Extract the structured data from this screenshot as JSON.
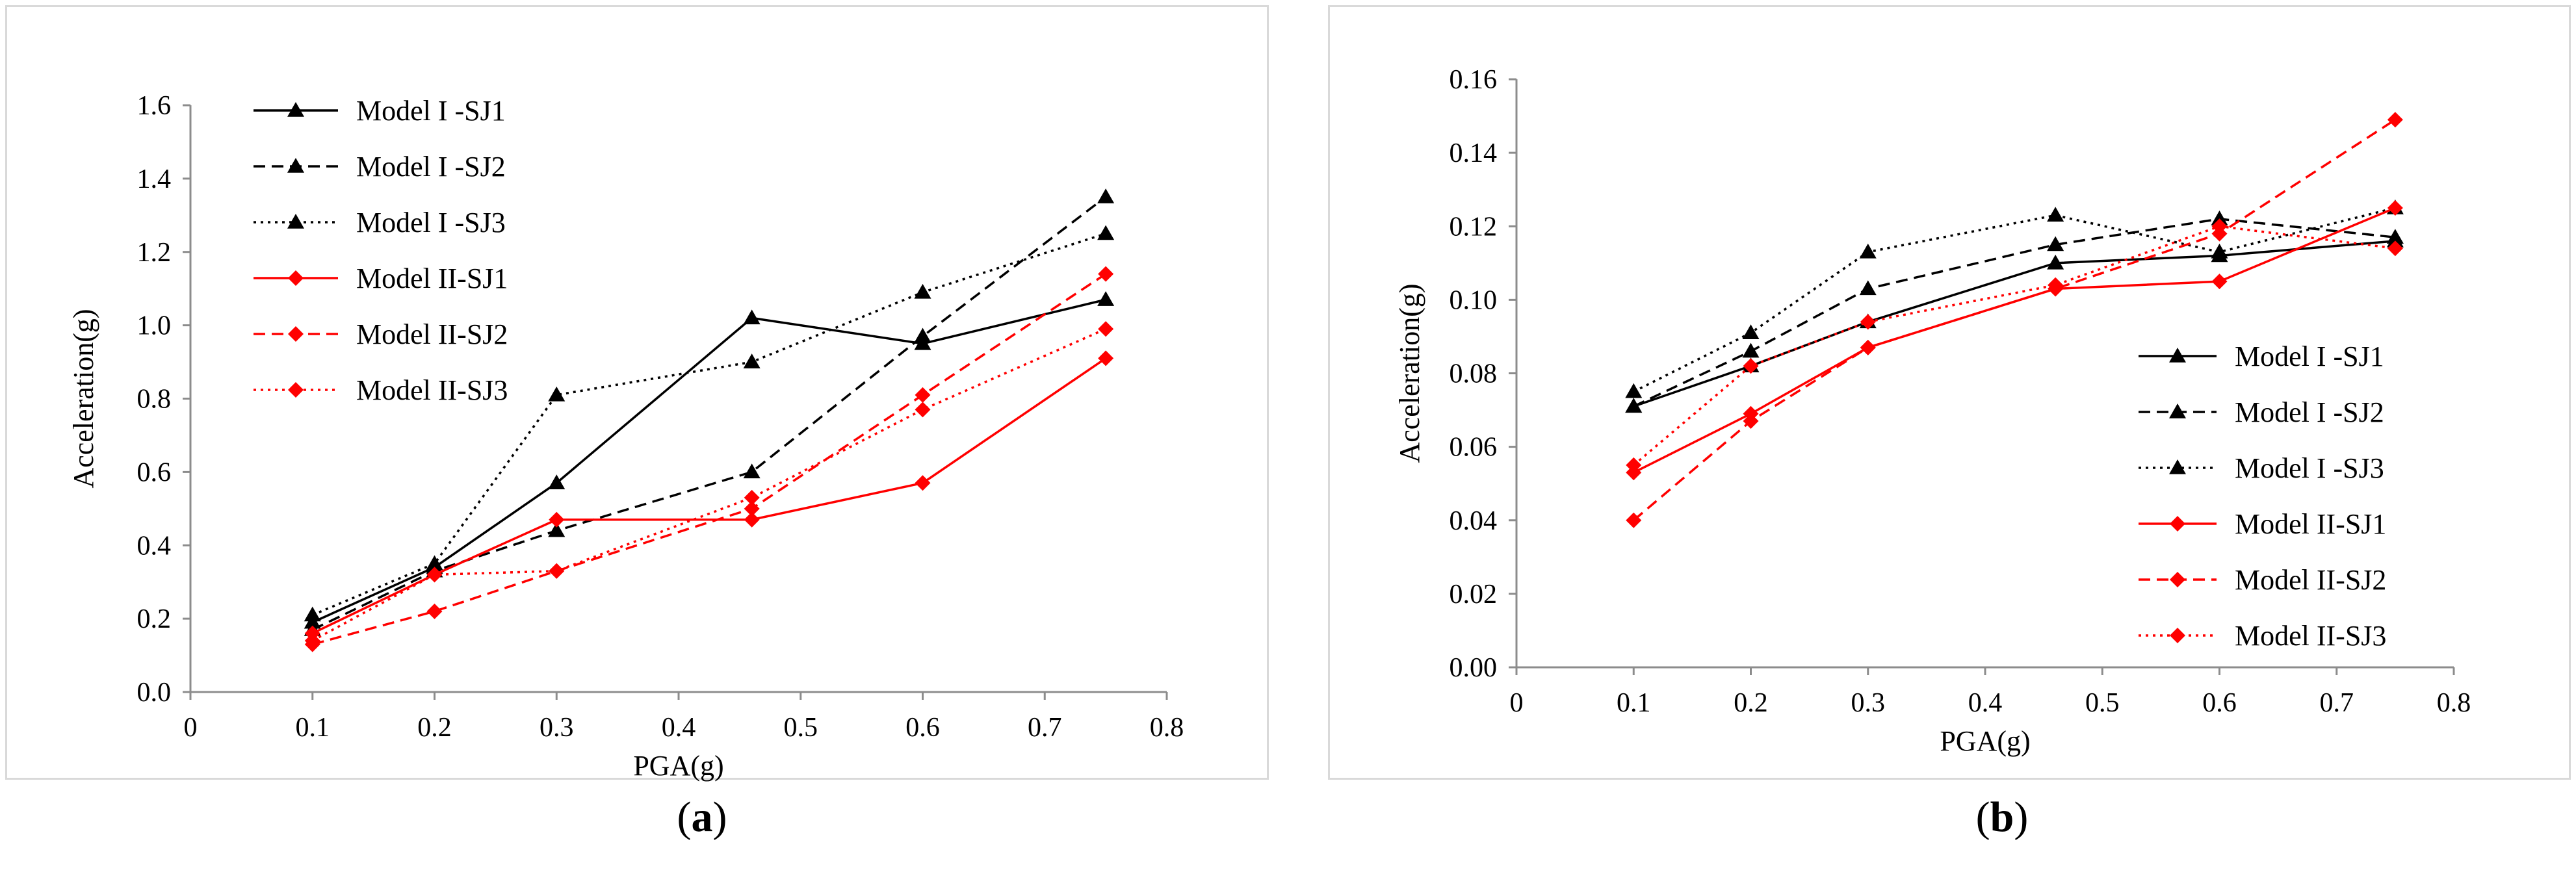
{
  "chart_data": [
    {
      "type": "line",
      "panel_label": "a",
      "xlabel": "PGA(g)",
      "ylabel": "Acceleration(g)",
      "xlim": [
        0,
        0.8
      ],
      "ylim": [
        0,
        1.6
      ],
      "xticks": [
        "0",
        "0.1",
        "0.2",
        "0.3",
        "0.4",
        "0.5",
        "0.6",
        "0.7",
        "0.8"
      ],
      "yticks": [
        "0.0",
        "0.2",
        "0.4",
        "0.6",
        "0.8",
        "1.0",
        "1.2",
        "1.4",
        "1.6"
      ],
      "legend_position": "top-left",
      "x": [
        0.1,
        0.2,
        0.3,
        0.46,
        0.6,
        0.75
      ],
      "series": [
        {
          "name": "Model I -SJ1",
          "values": [
            0.19,
            0.34,
            0.57,
            1.02,
            0.95,
            1.07
          ],
          "color": "#000000",
          "dash": "solid",
          "marker": "triangle"
        },
        {
          "name": "Model I -SJ2",
          "values": [
            0.17,
            0.33,
            0.44,
            0.6,
            0.97,
            1.35
          ],
          "color": "#000000",
          "dash": "dashed",
          "marker": "triangle"
        },
        {
          "name": "Model I -SJ3",
          "values": [
            0.21,
            0.35,
            0.81,
            0.9,
            1.09,
            1.25
          ],
          "color": "#000000",
          "dash": "dotted",
          "marker": "triangle"
        },
        {
          "name": "Model II-SJ1",
          "values": [
            0.16,
            0.32,
            0.47,
            0.47,
            0.57,
            0.91
          ],
          "color": "#ff0000",
          "dash": "solid",
          "marker": "diamond"
        },
        {
          "name": "Model II-SJ2",
          "values": [
            0.13,
            0.22,
            0.33,
            0.5,
            0.81,
            1.14
          ],
          "color": "#ff0000",
          "dash": "dashed",
          "marker": "diamond"
        },
        {
          "name": "Model II-SJ3",
          "values": [
            0.14,
            0.32,
            0.33,
            0.53,
            0.77,
            0.99
          ],
          "color": "#ff0000",
          "dash": "dotted",
          "marker": "diamond"
        }
      ]
    },
    {
      "type": "line",
      "panel_label": "b",
      "xlabel": "PGA(g)",
      "ylabel": "Acceleration(g)",
      "xlim": [
        0,
        0.8
      ],
      "ylim": [
        0,
        0.16
      ],
      "xticks": [
        "0",
        "0.1",
        "0.2",
        "0.3",
        "0.4",
        "0.5",
        "0.6",
        "0.7",
        "0.8"
      ],
      "yticks": [
        "0.00",
        "0.02",
        "0.04",
        "0.06",
        "0.08",
        "0.10",
        "0.12",
        "0.14",
        "0.16"
      ],
      "legend_position": "bottom-right",
      "x": [
        0.1,
        0.2,
        0.3,
        0.46,
        0.6,
        0.75
      ],
      "series": [
        {
          "name": "Model I -SJ1",
          "values": [
            0.071,
            0.082,
            0.094,
            0.11,
            0.112,
            0.116
          ],
          "color": "#000000",
          "dash": "solid",
          "marker": "triangle"
        },
        {
          "name": "Model I -SJ2",
          "values": [
            0.071,
            0.086,
            0.103,
            0.115,
            0.122,
            0.117
          ],
          "color": "#000000",
          "dash": "dashed",
          "marker": "triangle"
        },
        {
          "name": "Model I -SJ3",
          "values": [
            0.075,
            0.091,
            0.113,
            0.123,
            0.113,
            0.125
          ],
          "color": "#000000",
          "dash": "dotted",
          "marker": "triangle"
        },
        {
          "name": "Model II-SJ1",
          "values": [
            0.053,
            0.069,
            0.087,
            0.103,
            0.105,
            0.125
          ],
          "color": "#ff0000",
          "dash": "solid",
          "marker": "diamond"
        },
        {
          "name": "Model II-SJ2",
          "values": [
            0.04,
            0.067,
            0.087,
            0.103,
            0.118,
            0.149
          ],
          "color": "#ff0000",
          "dash": "dashed",
          "marker": "diamond"
        },
        {
          "name": "Model II-SJ3",
          "values": [
            0.055,
            0.082,
            0.094,
            0.104,
            0.12,
            0.114
          ],
          "color": "#ff0000",
          "dash": "dotted",
          "marker": "diamond"
        }
      ]
    }
  ]
}
